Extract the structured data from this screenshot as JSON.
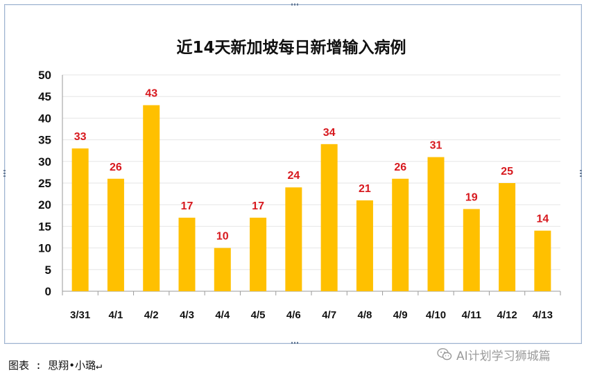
{
  "chart_data": {
    "type": "bar",
    "title": "近14天新加坡每日新增输入病例",
    "categories": [
      "3/31",
      "4/1",
      "4/2",
      "4/3",
      "4/4",
      "4/5",
      "4/6",
      "4/7",
      "4/8",
      "4/9",
      "4/10",
      "4/11",
      "4/12",
      "4/13"
    ],
    "values": [
      33,
      26,
      43,
      17,
      10,
      17,
      24,
      34,
      21,
      26,
      31,
      19,
      25,
      14
    ],
    "yticks": [
      "0",
      "5",
      "10",
      "15",
      "20",
      "25",
      "30",
      "35",
      "40",
      "45",
      "50"
    ],
    "ylim": [
      0,
      50
    ],
    "grid": true,
    "legend": "none",
    "colors": {
      "bar": "#ffc000",
      "data_label": "#d7181e",
      "frame": "#9fb3cf"
    }
  },
  "caption": "图表 : 思翔•小璐↵",
  "watermark": {
    "text": "AI计划学习狮城篇",
    "icon": "wechat-icon"
  }
}
